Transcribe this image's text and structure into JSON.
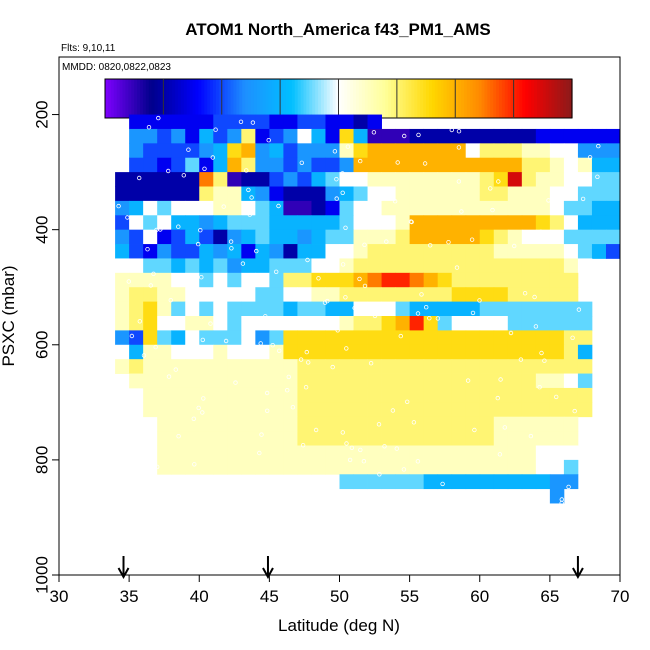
{
  "chart_data": {
    "type": "heatmap",
    "title": "ATOM1 North_America f43_PM1_AMS",
    "flights_label": "Flts: 9,10,11",
    "dates_label": "MMDD: 0820,0822,0823",
    "xlabel": "Latitude (deg N)",
    "ylabel": "PSXC (mbar)",
    "xlim": [
      30,
      70
    ],
    "ylim": [
      1000,
      100
    ],
    "x_ticks": [
      "30",
      "35",
      "40",
      "45",
      "50",
      "55",
      "60",
      "65",
      "70"
    ],
    "y_ticks": [
      "200",
      "400",
      "600",
      "800",
      "1000"
    ],
    "colorbar": {
      "range": [
        0.0,
        0.16
      ],
      "ticks": [
        "0.02",
        "0.04",
        "0.06",
        "0.08",
        "0.10",
        "0.12",
        "0.14"
      ],
      "colors": [
        "#7f00ff",
        "#00008b",
        "#0000ff",
        "#1e90ff",
        "#00bfff",
        "#ffffff",
        "#ffff99",
        "#ffd700",
        "#ff8c00",
        "#ff0000",
        "#8b1a1a"
      ]
    },
    "arrows_at_latitude": [
      34.6,
      44.9,
      67.0
    ],
    "cell_size": {
      "dlat": 1,
      "dp": 25
    },
    "rows": [
      {
        "p": 200,
        "lat0": 35,
        "values": [
          0.03,
          0.03,
          0.03,
          0.03,
          0.03,
          0.03,
          0.04,
          0.04,
          0.04,
          0.04,
          0.03,
          0.03,
          0.04,
          0.04,
          0.03,
          0.03,
          0.02,
          0.03
        ]
      },
      {
        "p": 225,
        "lat0": 35,
        "values": [
          0.05,
          0.05,
          0.04,
          0.05,
          0.03,
          0.06,
          0.04,
          0.05,
          0.1,
          0.03,
          0.04,
          0.05,
          0.08,
          0.06,
          0.03,
          0.11,
          0.06,
          0.01,
          0.01,
          0.01,
          0.02,
          0.02,
          0.02,
          0.02,
          0.02,
          0.02,
          0.02,
          0.02,
          0.02,
          0.03,
          0.03,
          0.03,
          0.03,
          0.03,
          0.03
        ]
      },
      {
        "p": 250,
        "lat0": 35,
        "values": [
          0.05,
          0.04,
          0.04,
          0.04,
          0.04,
          0.05,
          0.06,
          0.11,
          0.12,
          0.05,
          0.06,
          0.04,
          0.05,
          0.05,
          0.05,
          0.09,
          0.11,
          0.12,
          0.12,
          0.12,
          0.12,
          0.12,
          0.12,
          0.12,
          0.08,
          0.1,
          0.1,
          0.1,
          0.09,
          0.09,
          0.08,
          0.08,
          0.05,
          0.05,
          0.05
        ]
      },
      {
        "p": 275,
        "lat0": 35,
        "values": [
          0.04,
          0.04,
          0.03,
          0.04,
          0.07,
          0.03,
          0.06,
          0.12,
          0.1,
          0.05,
          0.05,
          0.04,
          0.05,
          0.04,
          0.04,
          0.05,
          0.12,
          0.12,
          0.12,
          0.12,
          0.12,
          0.12,
          0.12,
          0.12,
          0.12,
          0.12,
          0.12,
          0.12,
          0.1,
          0.1,
          0.09,
          0.08,
          0.09,
          0.06,
          0.06
        ]
      },
      {
        "p": 300,
        "lat0": 34,
        "values": [
          0.02,
          0.02,
          0.02,
          0.02,
          0.02,
          0.02,
          0.13,
          0.1,
          0.01,
          0.02,
          0.02,
          0.04,
          0.05,
          0.04,
          0.06,
          0.07,
          0.08,
          0.08,
          0.09,
          0.09,
          0.09,
          0.09,
          0.09,
          0.09,
          0.09,
          0.09,
          0.1,
          0.11,
          0.15,
          0.1,
          0.09,
          0.09,
          0.08,
          0.08,
          0.07,
          0.07
        ]
      },
      {
        "p": 325,
        "lat0": 34,
        "values": [
          0.02,
          0.02,
          0.02,
          0.02,
          0.02,
          0.02,
          0.1,
          0.09,
          0.09,
          0.06,
          0.05,
          0.03,
          0.02,
          0.02,
          0.02,
          0.05,
          0.06,
          0.07,
          0.08,
          0.08,
          0.09,
          0.09,
          0.09,
          0.09,
          0.09,
          0.09,
          0.1,
          0.1,
          0.09,
          0.09,
          0.09,
          0.08,
          0.08,
          0.07,
          0.07,
          0.07
        ]
      },
      {
        "p": 350,
        "lat0": 34,
        "values": [
          0.05,
          0.06,
          0.08,
          0.07,
          0.08,
          0.08,
          0.08,
          0.09,
          0.09,
          0.08,
          0.07,
          0.06,
          0.01,
          0.01,
          0.02,
          0.03,
          0.07,
          0.08,
          0.08,
          0.09,
          0.09,
          0.09,
          0.09,
          0.09,
          0.09,
          0.09,
          0.09,
          0.09,
          0.09,
          0.09,
          0.09,
          0.08,
          0.07,
          0.07,
          0.06,
          0.06
        ]
      },
      {
        "p": 375,
        "lat0": 34,
        "values": [
          0.04,
          0.08,
          0.07,
          0.08,
          0.06,
          0.06,
          0.05,
          0.06,
          0.07,
          0.07,
          0.07,
          0.06,
          0.06,
          0.06,
          0.06,
          0.06,
          0.07,
          0.08,
          0.08,
          0.08,
          0.09,
          0.12,
          0.12,
          0.12,
          0.12,
          0.12,
          0.12,
          0.12,
          0.12,
          0.12,
          0.11,
          0.1,
          0.08,
          0.06,
          0.06,
          0.06
        ]
      },
      {
        "p": 400,
        "lat0": 34,
        "values": [
          0.05,
          0.04,
          0.08,
          0.03,
          0.04,
          0.06,
          0.04,
          0.02,
          0.05,
          0.06,
          0.07,
          0.06,
          0.06,
          0.05,
          0.06,
          0.07,
          0.07,
          0.09,
          0.09,
          0.09,
          0.1,
          0.12,
          0.12,
          0.12,
          0.12,
          0.12,
          0.11,
          0.1,
          0.09,
          0.08,
          0.08,
          0.08,
          0.07,
          0.07,
          0.07,
          0.07
        ]
      },
      {
        "p": 425,
        "lat0": 34,
        "values": [
          0.06,
          0.04,
          0.03,
          0.05,
          0.04,
          0.04,
          0.06,
          0.05,
          0.06,
          0.03,
          0.06,
          0.05,
          0.02,
          0.06,
          0.06,
          0.08,
          0.08,
          0.09,
          0.1,
          0.1,
          0.1,
          0.1,
          0.1,
          0.1,
          0.1,
          0.1,
          0.1,
          0.09,
          0.09,
          0.09,
          0.09,
          0.09,
          0.08,
          0.07,
          0.06,
          0.04
        ]
      },
      {
        "p": 450,
        "lat0": 34,
        "values": [
          0.08,
          0.08,
          0.07,
          0.07,
          0.06,
          0.07,
          0.06,
          0.07,
          0.05,
          0.06,
          0.06,
          0.07,
          0.07,
          0.07,
          0.08,
          0.08,
          0.09,
          0.1,
          0.1,
          0.1,
          0.1,
          0.1,
          0.1,
          0.1,
          0.1,
          0.1,
          0.1,
          0.1,
          0.1,
          0.1,
          0.1,
          0.1,
          0.09,
          0.08
        ]
      },
      {
        "p": 475,
        "lat0": 34,
        "values": [
          0.09,
          0.09,
          0.09,
          0.09,
          0.08,
          0.08,
          0.07,
          0.08,
          0.07,
          0.08,
          0.08,
          0.07,
          0.1,
          0.1,
          0.11,
          0.11,
          0.11,
          0.12,
          0.13,
          0.14,
          0.14,
          0.13,
          0.12,
          0.11,
          0.1,
          0.1,
          0.1,
          0.1,
          0.1,
          0.1,
          0.1,
          0.1,
          0.1
        ]
      },
      {
        "p": 500,
        "lat0": 34,
        "values": [
          0.09,
          0.1,
          0.1,
          0.09,
          0.09,
          0.08,
          0.08,
          0.08,
          0.08,
          0.08,
          0.07,
          0.07,
          0.08,
          0.08,
          0.09,
          0.09,
          0.1,
          0.1,
          0.1,
          0.1,
          0.1,
          0.1,
          0.1,
          0.1,
          0.11,
          0.11,
          0.11,
          0.11,
          0.1,
          0.1,
          0.1,
          0.1,
          0.1
        ]
      },
      {
        "p": 525,
        "lat0": 34,
        "values": [
          0.09,
          0.1,
          0.11,
          0.09,
          0.07,
          0.08,
          0.07,
          0.08,
          0.07,
          0.07,
          0.07,
          0.07,
          0.06,
          0.07,
          0.07,
          0.06,
          0.06,
          0.08,
          0.08,
          0.08,
          0.07,
          0.06,
          0.06,
          0.06,
          0.06,
          0.06,
          0.07,
          0.07,
          0.07,
          0.07,
          0.07,
          0.07,
          0.07,
          0.07
        ]
      },
      {
        "p": 550,
        "lat0": 34,
        "values": [
          0.09,
          0.1,
          0.11,
          0.08,
          0.08,
          0.09,
          0.09,
          0.08,
          0.07,
          0.08,
          0.08,
          0.08,
          0.08,
          0.08,
          0.08,
          0.08,
          0.09,
          0.1,
          0.1,
          0.11,
          0.12,
          0.14,
          0.11,
          0.07,
          0.08,
          0.08,
          0.08,
          0.08,
          0.07,
          0.07,
          0.07,
          0.07,
          0.07,
          0.07
        ]
      },
      {
        "p": 575,
        "lat0": 34,
        "values": [
          0.05,
          0.04,
          0.11,
          0.07,
          0.06,
          0.08,
          0.07,
          0.07,
          0.07,
          0.08,
          0.05,
          0.07,
          0.11,
          0.11,
          0.11,
          0.11,
          0.11,
          0.11,
          0.11,
          0.11,
          0.11,
          0.11,
          0.11,
          0.11,
          0.11,
          0.11,
          0.11,
          0.11,
          0.11,
          0.11,
          0.11,
          0.11,
          0.1,
          0.1
        ]
      },
      {
        "p": 600,
        "lat0": 34,
        "values": [
          0.08,
          0.06,
          0.09,
          0.09,
          0.08,
          0.08,
          0.08,
          0.09,
          0.08,
          0.08,
          0.08,
          0.09,
          0.11,
          0.11,
          0.11,
          0.11,
          0.11,
          0.11,
          0.11,
          0.11,
          0.11,
          0.11,
          0.11,
          0.11,
          0.11,
          0.11,
          0.11,
          0.11,
          0.11,
          0.11,
          0.11,
          0.11,
          0.1,
          0.06
        ]
      },
      {
        "p": 625,
        "lat0": 34,
        "values": [
          0.09,
          0.1,
          0.09,
          0.09,
          0.09,
          0.09,
          0.09,
          0.09,
          0.09,
          0.09,
          0.09,
          0.09,
          0.09,
          0.1,
          0.1,
          0.1,
          0.1,
          0.1,
          0.1,
          0.1,
          0.1,
          0.1,
          0.1,
          0.1,
          0.1,
          0.1,
          0.1,
          0.1,
          0.1,
          0.1,
          0.1,
          0.1,
          0.1,
          0.1
        ]
      },
      {
        "p": 650,
        "lat0": 35,
        "values": [
          0.09,
          0.09,
          0.09,
          0.09,
          0.09,
          0.09,
          0.09,
          0.09,
          0.09,
          0.09,
          0.09,
          0.09,
          0.1,
          0.1,
          0.1,
          0.1,
          0.1,
          0.1,
          0.1,
          0.1,
          0.1,
          0.1,
          0.1,
          0.1,
          0.1,
          0.1,
          0.1,
          0.1,
          0.1,
          0.09,
          0.09,
          0.08,
          0.07
        ]
      },
      {
        "p": 675,
        "lat0": 36,
        "values": [
          0.09,
          0.09,
          0.09,
          0.09,
          0.09,
          0.09,
          0.09,
          0.09,
          0.09,
          0.09,
          0.09,
          0.1,
          0.1,
          0.1,
          0.1,
          0.1,
          0.1,
          0.1,
          0.1,
          0.1,
          0.1,
          0.1,
          0.1,
          0.1,
          0.1,
          0.1,
          0.1,
          0.1,
          0.1,
          0.1,
          0.1,
          0.1
        ]
      },
      {
        "p": 700,
        "lat0": 36,
        "values": [
          0.09,
          0.09,
          0.09,
          0.09,
          0.09,
          0.09,
          0.09,
          0.09,
          0.09,
          0.09,
          0.09,
          0.1,
          0.1,
          0.1,
          0.1,
          0.1,
          0.1,
          0.1,
          0.1,
          0.1,
          0.1,
          0.1,
          0.1,
          0.1,
          0.1,
          0.1,
          0.1,
          0.1,
          0.1,
          0.1,
          0.1,
          0.1
        ]
      },
      {
        "p": 725,
        "lat0": 37,
        "values": [
          0.09,
          0.09,
          0.09,
          0.09,
          0.09,
          0.09,
          0.09,
          0.09,
          0.09,
          0.09,
          0.1,
          0.1,
          0.1,
          0.1,
          0.1,
          0.1,
          0.1,
          0.1,
          0.1,
          0.1,
          0.1,
          0.1,
          0.1,
          0.1,
          0.09,
          0.09,
          0.09,
          0.09,
          0.09,
          0.09
        ]
      },
      {
        "p": 750,
        "lat0": 37,
        "values": [
          0.09,
          0.09,
          0.09,
          0.09,
          0.09,
          0.09,
          0.09,
          0.09,
          0.09,
          0.09,
          0.1,
          0.1,
          0.1,
          0.1,
          0.1,
          0.1,
          0.1,
          0.1,
          0.1,
          0.1,
          0.1,
          0.1,
          0.1,
          0.1,
          0.09,
          0.09,
          0.09,
          0.09,
          0.09,
          0.09
        ]
      },
      {
        "p": 775,
        "lat0": 37,
        "values": [
          0.09,
          0.09,
          0.09,
          0.09,
          0.09,
          0.09,
          0.09,
          0.09,
          0.09,
          0.09,
          0.09,
          0.09,
          0.09,
          0.09,
          0.09,
          0.09,
          0.09,
          0.09,
          0.09,
          0.09,
          0.09,
          0.09,
          0.09,
          0.09,
          0.09,
          0.09,
          0.09,
          0.08,
          0.08,
          0.08
        ]
      },
      {
        "p": 800,
        "lat0": 37,
        "values": [
          0.09,
          0.09,
          0.09,
          0.09,
          0.09,
          0.09,
          0.09,
          0.09,
          0.09,
          0.09,
          0.09,
          0.09,
          0.09,
          0.09,
          0.09,
          0.09,
          0.09,
          0.09,
          0.09,
          0.09,
          0.09,
          0.09,
          0.09,
          0.09,
          0.09,
          0.09,
          0.09,
          0.08,
          0.08,
          0.07
        ]
      },
      {
        "p": 825,
        "lat0": 50,
        "values": [
          0.07,
          0.07,
          0.07,
          0.07,
          0.07,
          0.07,
          0.06,
          0.06,
          0.06,
          0.06,
          0.06,
          0.06,
          0.06,
          0.06,
          0.06,
          0.05,
          0.05
        ]
      },
      {
        "p": 850,
        "lat0": 65,
        "values": [
          0.05
        ]
      }
    ]
  }
}
